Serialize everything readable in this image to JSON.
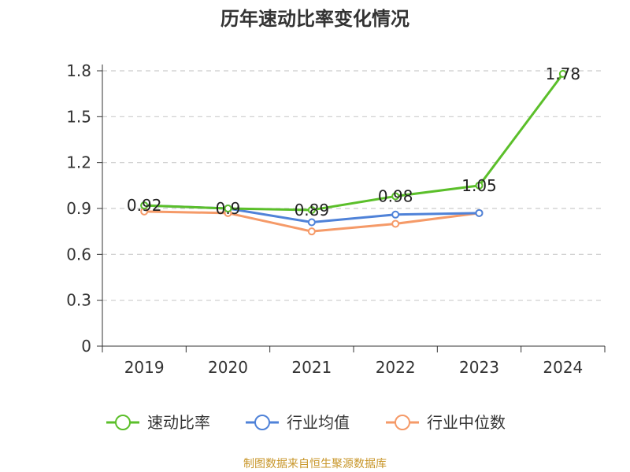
{
  "chart_data": {
    "type": "line",
    "title": "历年速动比率变化情况",
    "categories": [
      "2019",
      "2020",
      "2021",
      "2022",
      "2023",
      "2024"
    ],
    "y_ticks": [
      "0",
      "0.3",
      "0.6",
      "0.9",
      "1.2",
      "1.5",
      "1.8"
    ],
    "ylim": [
      0,
      1.8
    ],
    "grid": true,
    "legend_position": "bottom",
    "series": [
      {
        "name": "速动比率",
        "color": "#5bbf2a",
        "values": [
          0.92,
          0.9,
          0.89,
          0.98,
          1.05,
          1.78
        ],
        "labels": [
          "0.92",
          "0.9",
          "0.89",
          "0.98",
          "1.05",
          "1.78"
        ]
      },
      {
        "name": "行业均值",
        "color": "#4f82d8",
        "values": [
          0.92,
          0.9,
          0.81,
          0.86,
          0.87,
          null
        ]
      },
      {
        "name": "行业中位数",
        "color": "#f59a68",
        "values": [
          0.88,
          0.87,
          0.75,
          0.8,
          0.87,
          null
        ]
      }
    ],
    "source": "制图数据来自恒生聚源数据库"
  }
}
